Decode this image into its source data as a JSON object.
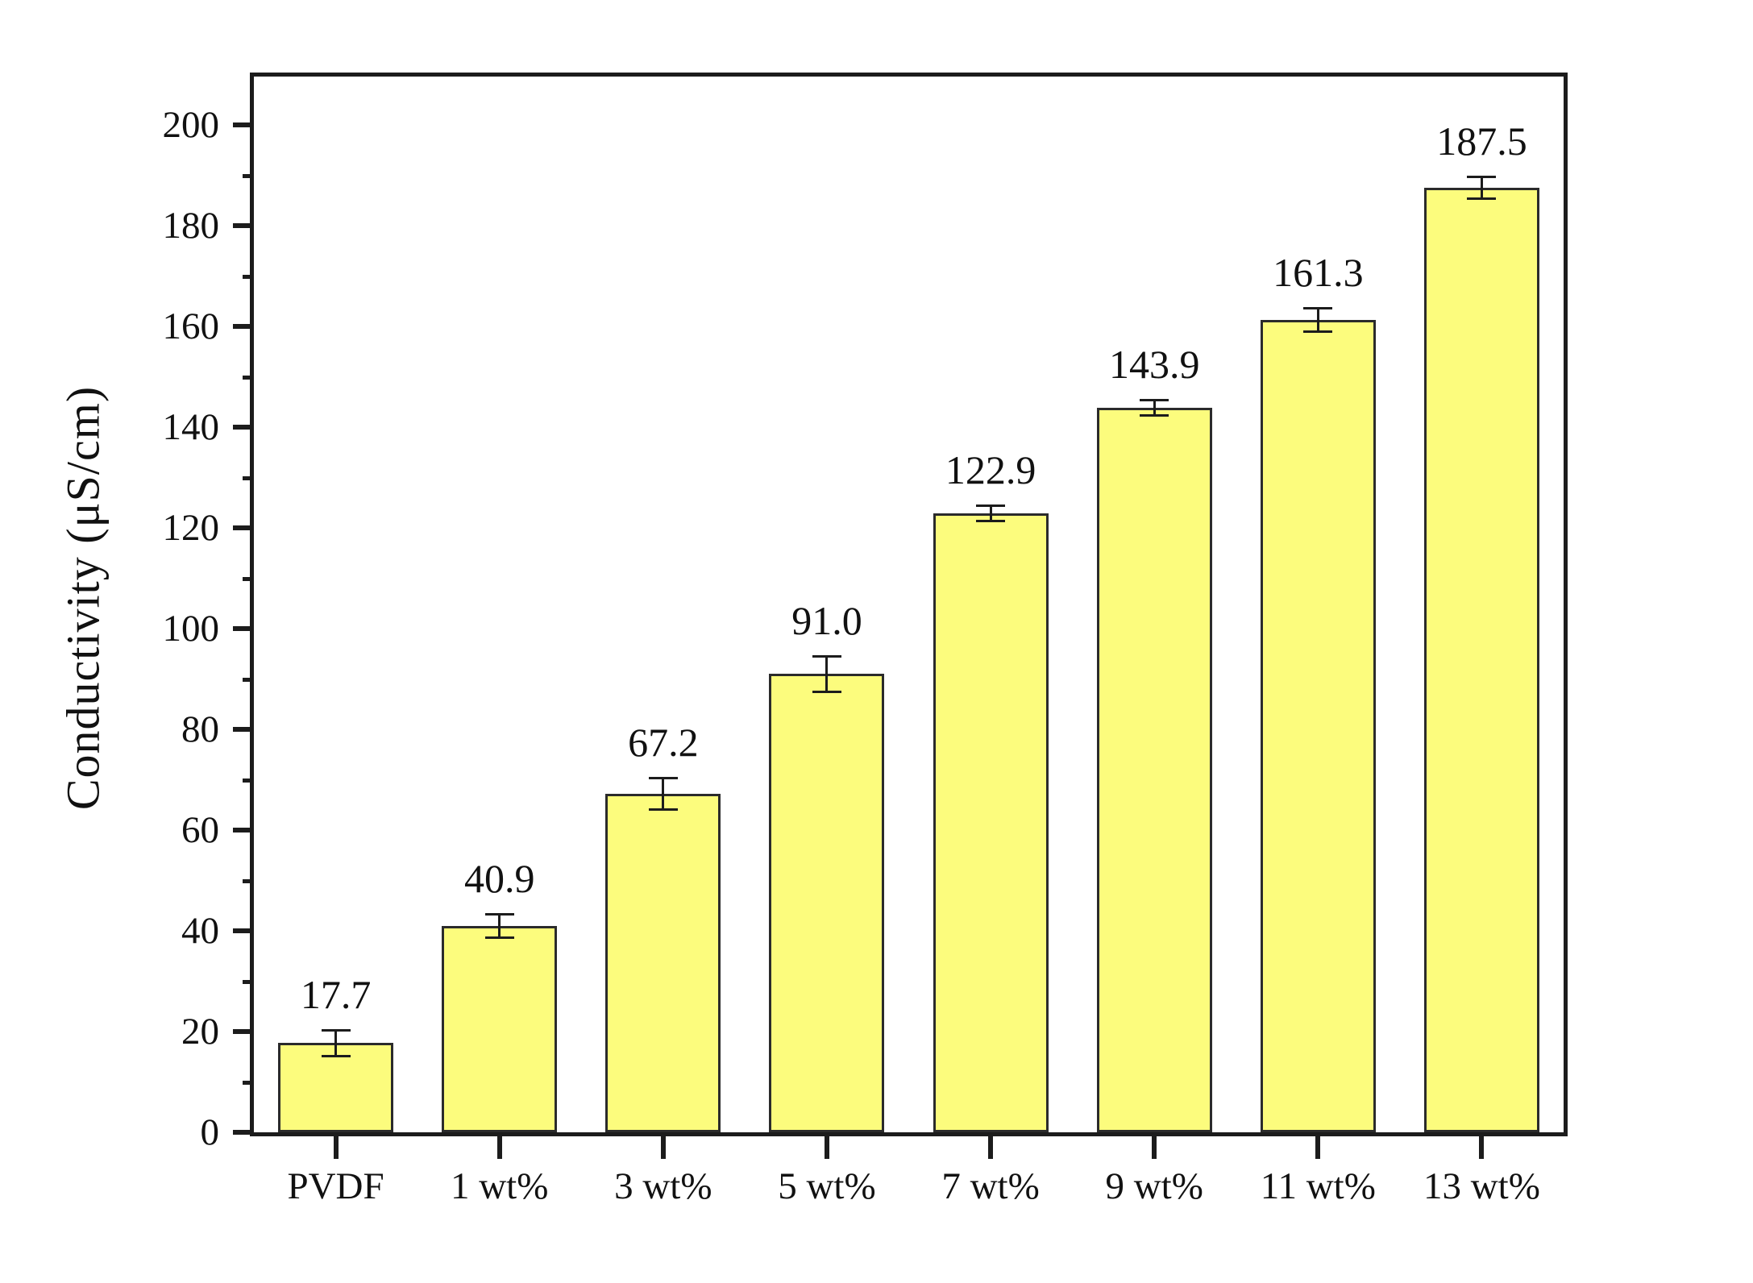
{
  "chart_data": {
    "type": "bar",
    "title": "",
    "categories": [
      "PVDF",
      "1 wt%",
      "3 wt%",
      "5 wt%",
      "7 wt%",
      "9 wt%",
      "11 wt%",
      "13 wt%"
    ],
    "values": [
      17.7,
      40.9,
      67.2,
      91.0,
      122.9,
      143.9,
      161.3,
      187.5
    ],
    "value_labels": [
      "17.7",
      "40.9",
      "67.2",
      "91.0",
      "122.9",
      "143.9",
      "161.3",
      "187.5"
    ],
    "errors": [
      2.6,
      2.4,
      3.2,
      3.6,
      1.6,
      1.6,
      2.4,
      2.2
    ],
    "xlabel": "",
    "ylabel": "Conductivity (μS/cm)",
    "ylim": [
      0,
      209.6
    ],
    "yticks_major": [
      0,
      20,
      40,
      60,
      80,
      100,
      120,
      140,
      160,
      180,
      200
    ],
    "ytick_labels": [
      "0",
      "20",
      "40",
      "60",
      "80",
      "100",
      "120",
      "140",
      "160",
      "180",
      "200"
    ],
    "yticks_minor": [
      10,
      30,
      50,
      70,
      90,
      110,
      130,
      150,
      170,
      190
    ],
    "grid": false,
    "legend": null,
    "colors": {
      "bar_fill": "#FCFC7D",
      "bar_border": "#2B2B2B",
      "axis": "#1C1C1C",
      "error_bar": "#1C1C1C",
      "text": "#111111",
      "background": "#FFFFFF"
    }
  }
}
